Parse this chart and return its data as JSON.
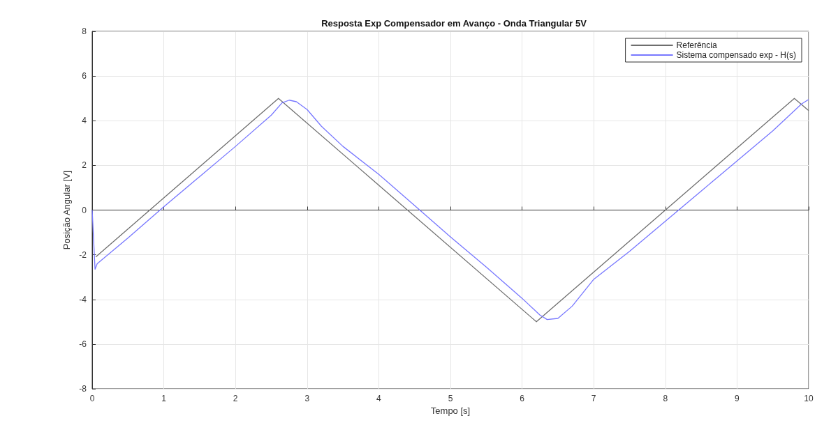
{
  "chart_data": {
    "type": "line",
    "title": "Resposta Exp Compensador em Avanço - Onda Triangular 5V",
    "xlabel": "Tempo [s]",
    "ylabel": "Posição Angular [V]",
    "xlim": [
      0,
      10
    ],
    "xticks": [
      0,
      1,
      2,
      3,
      4,
      5,
      6,
      7,
      8,
      9,
      10
    ],
    "ylim": [
      -8,
      8
    ],
    "yticks": [
      -8,
      -6,
      -4,
      -2,
      0,
      2,
      4,
      6,
      8
    ],
    "grid": true,
    "legend": "top right",
    "marker": "none",
    "line_style": "solid",
    "series": [
      {
        "name": "Referência",
        "color": "#6e6e6e",
        "x": [
          0.05,
          2.6,
          6.2,
          9.8,
          10
        ],
        "values": [
          -2.1,
          5,
          -5,
          5,
          4.45
        ]
      },
      {
        "name": "Sistema compensado exp - H(s)",
        "color": "#7777ff",
        "x": [
          0,
          0.04,
          0.07,
          0.5,
          1,
          1.5,
          2,
          2.5,
          2.65,
          2.75,
          2.85,
          3,
          3.2,
          3.5,
          4,
          4.5,
          5,
          5.5,
          6,
          6.25,
          6.35,
          6.5,
          6.7,
          7,
          7.5,
          8,
          8.5,
          9,
          9.5,
          9.9,
          10
        ],
        "values": [
          0,
          -2.65,
          -2.4,
          -1.25,
          0.15,
          1.5,
          2.85,
          4.25,
          4.8,
          4.92,
          4.85,
          4.5,
          3.75,
          2.85,
          1.6,
          0.2,
          -1.2,
          -2.55,
          -3.95,
          -4.7,
          -4.9,
          -4.85,
          -4.3,
          -3.1,
          -1.85,
          -0.5,
          0.85,
          2.2,
          3.55,
          4.75,
          4.95
        ]
      }
    ]
  }
}
